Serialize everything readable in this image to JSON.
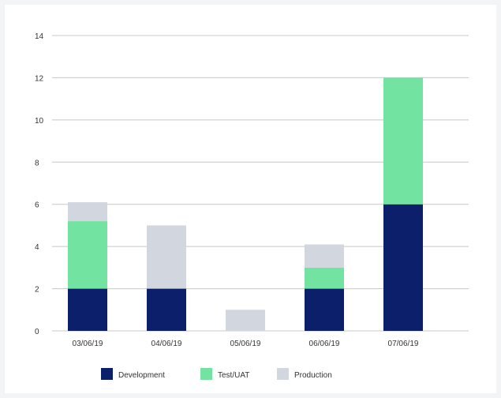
{
  "colors": {
    "background": "#f3f4f6",
    "panel": "#ffffff",
    "grid": "#c8c8c8",
    "development": "#0b1f6b",
    "test_uat": "#72e3a0",
    "production": "#d2d6df"
  },
  "chart_data": {
    "type": "bar",
    "stacked": true,
    "title": "",
    "xlabel": "",
    "ylabel": "",
    "categories": [
      "03/06/19",
      "04/06/19",
      "05/06/19",
      "06/06/19",
      "07/06/19"
    ],
    "series": [
      {
        "name": "Development",
        "color": "#0b1f6b",
        "values": [
          2,
          2,
          0,
          2,
          6
        ]
      },
      {
        "name": "Test/UAT",
        "color": "#72e3a0",
        "values": [
          3.2,
          0,
          0,
          1,
          6
        ]
      },
      {
        "name": "Production",
        "color": "#d2d6df",
        "values": [
          0.9,
          3,
          1,
          1.1,
          0
        ]
      }
    ],
    "ylim": [
      0,
      14
    ],
    "yticks": [
      0,
      2,
      4,
      6,
      8,
      10,
      12,
      14
    ],
    "grid": true,
    "legend_position": "bottom"
  }
}
